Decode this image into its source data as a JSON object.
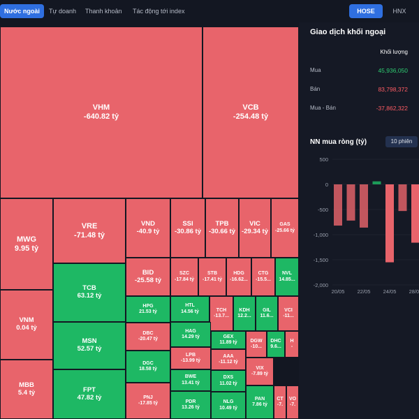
{
  "tabs": [
    "Nước ngoài",
    "Tự doanh",
    "Thanh khoản",
    "Tác động tới index"
  ],
  "markets": [
    "HOSE",
    "HNX"
  ],
  "colors": {
    "red": "#e8646b",
    "green": "#1eb864",
    "accent": "#2f6fe0",
    "bg": "#131722"
  },
  "treemap": [
    {
      "ticker": "VHM",
      "value": "-640.82 tỷ",
      "c": "r"
    },
    {
      "ticker": "VCB",
      "value": "-254.48 tỷ",
      "c": "r"
    },
    {
      "ticker": "MWG",
      "value": "9.95 tỷ",
      "c": "r"
    },
    {
      "ticker": "VRE",
      "value": "-71.48 tỷ",
      "c": "r"
    },
    {
      "ticker": "VND",
      "value": "-40.9 tỷ",
      "c": "r"
    },
    {
      "ticker": "SSI",
      "value": "-30.86 tỷ",
      "c": "r"
    },
    {
      "ticker": "TPB",
      "value": "-30.66 tỷ",
      "c": "r"
    },
    {
      "ticker": "VIC",
      "value": "-29.34 tỷ",
      "c": "r"
    },
    {
      "ticker": "GAS",
      "value": "-25.66 tỷ",
      "c": "r"
    },
    {
      "ticker": "BID",
      "value": "-25.58 tỷ",
      "c": "r"
    },
    {
      "ticker": "SZC",
      "value": "-17.84 tỷ",
      "c": "r"
    },
    {
      "ticker": "STB",
      "value": "-17.41 tỷ",
      "c": "r"
    },
    {
      "ticker": "HDG",
      "value": "-16.62...",
      "c": "r"
    },
    {
      "ticker": "CTG",
      "value": "-15.5...",
      "c": "r"
    },
    {
      "ticker": "NVL",
      "value": "14.85...",
      "c": "g"
    },
    {
      "ticker": "VNM",
      "value": "0.04 tỷ",
      "c": "r"
    },
    {
      "ticker": "TCB",
      "value": "63.12 tỷ",
      "c": "g"
    },
    {
      "ticker": "HPG",
      "value": "21.53 tỷ",
      "c": "g"
    },
    {
      "ticker": "HTL",
      "value": "14.56 tỷ",
      "c": "g"
    },
    {
      "ticker": "TCH",
      "value": "-13.7...",
      "c": "r"
    },
    {
      "ticker": "KDH",
      "value": "12.2...",
      "c": "g"
    },
    {
      "ticker": "GIL",
      "value": "11.6...",
      "c": "g"
    },
    {
      "ticker": "VCI",
      "value": "-11...",
      "c": "r"
    },
    {
      "ticker": "MSN",
      "value": "52.57 tỷ",
      "c": "g"
    },
    {
      "ticker": "DBC",
      "value": "-20.47 tỷ",
      "c": "r"
    },
    {
      "ticker": "HAG",
      "value": "14.29 tỷ",
      "c": "g"
    },
    {
      "ticker": "GEX",
      "value": "11.89 tỷ",
      "c": "g"
    },
    {
      "ticker": "DGW",
      "value": "-10...",
      "c": "r"
    },
    {
      "ticker": "DHC",
      "value": "9.6...",
      "c": "g"
    },
    {
      "ticker": "H",
      "value": "-",
      "c": "r"
    },
    {
      "ticker": "LPB",
      "value": "-13.99 tỷ",
      "c": "r"
    },
    {
      "ticker": "AAA",
      "value": "-11.12 tỷ",
      "c": "r"
    },
    {
      "ticker": "MBB",
      "value": "5.4 tỷ",
      "c": "r"
    },
    {
      "ticker": "DGC",
      "value": "18.58 tỷ",
      "c": "g"
    },
    {
      "ticker": "BWE",
      "value": "13.41 tỷ",
      "c": "g"
    },
    {
      "ticker": "DXS",
      "value": "11.02 tỷ",
      "c": "g"
    },
    {
      "ticker": "VIX",
      "value": "-7.89 tỷ",
      "c": "r"
    },
    {
      "ticker": "FPT",
      "value": "47.82 tỷ",
      "c": "g"
    },
    {
      "ticker": "PNJ",
      "value": "-17.85 tỷ",
      "c": "r"
    },
    {
      "ticker": "PDR",
      "value": "13.26 tỷ",
      "c": "g"
    },
    {
      "ticker": "NLG",
      "value": "10.49 tỷ",
      "c": "g"
    },
    {
      "ticker": "PAN",
      "value": "7.86 tỷ",
      "c": "g"
    },
    {
      "ticker": "CT",
      "value": "-7.",
      "c": "r"
    },
    {
      "ticker": "VO",
      "value": "-7.",
      "c": "r"
    }
  ],
  "panel": {
    "title": "Giao dịch khối ngoại",
    "col_header": "Khối lượng",
    "rows": [
      {
        "label": "Mua",
        "value": "45,936,050",
        "color": "#2ecc71"
      },
      {
        "label": "Bán",
        "value": "83,798,372",
        "color": "#ff5c64"
      },
      {
        "label": "Mua - Bán",
        "value": "-37,862,322",
        "color": "#ff5c64"
      }
    ],
    "chart_title": "NN mua ròng (tỷ)",
    "period_button": "10 phiên"
  },
  "chart_data": {
    "type": "bar",
    "title": "NN mua ròng (tỷ)",
    "yticks": [
      "500",
      "0",
      "-500",
      "-1,000",
      "-1,500",
      "-2,000"
    ],
    "ylim": [
      -2000,
      500
    ],
    "xticks": [
      "20/05",
      "22/05",
      "24/05",
      "28/05"
    ],
    "values": [
      -820,
      -720,
      -860,
      60,
      -1550,
      -530,
      -1160
    ],
    "grid": true
  }
}
